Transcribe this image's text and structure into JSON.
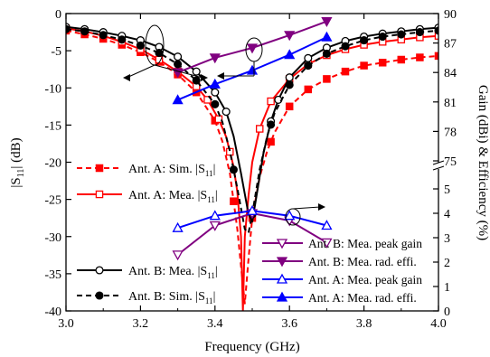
{
  "chart_data": {
    "type": "line",
    "xlabel": "Frequency (GHz)",
    "ylabel_left": "|S11| (dB)",
    "ylabel_right": "Gain (dBi) & Efficiency (%)",
    "xlim": [
      3.0,
      4.0
    ],
    "ylim_left": [
      -40,
      0
    ],
    "x_ticks": [
      "3.0",
      "3.2",
      "3.4",
      "3.6",
      "3.8",
      "4.0"
    ],
    "y_ticks_left": [
      "0",
      "-5",
      "-10",
      "-15",
      "-20",
      "-25",
      "-30",
      "-35",
      "-40"
    ],
    "right_axis": {
      "lower_segment": {
        "range": [
          0,
          5
        ],
        "ticks": [
          "0",
          "1",
          "2",
          "3",
          "4",
          "5"
        ]
      },
      "upper_segment": {
        "range": [
          75,
          90
        ],
        "ticks": [
          "75",
          "78",
          "81",
          "84",
          "87",
          "90"
        ]
      }
    },
    "grid": false,
    "legend_left": [
      {
        "series": "Ant. A: Sim. |S11|",
        "label": "Ant. A: Sim. |S",
        "sub": "11",
        "tail": "|"
      },
      {
        "series": "Ant. A: Mea. |S11|",
        "label": "Ant. A: Mea. |S",
        "sub": "11",
        "tail": "|"
      },
      {
        "series": "Ant. B: Mea. |S11|",
        "label": "Ant. B: Mea. |S",
        "sub": "11",
        "tail": "|"
      },
      {
        "series": "Ant. B: Sim. |S11|",
        "label": "Ant. B: Sim. |S",
        "sub": "11",
        "tail": "|"
      }
    ],
    "legend_right": [
      "Ant. B: Mea. peak gain",
      "Ant. B: Mea. rad. effi.",
      "Ant. A: Mea. peak gain",
      "Ant. A: Mea. rad. effi."
    ],
    "series": [
      {
        "name": "Ant. A: Sim. |S11|",
        "axis": "left",
        "color": "#ff0000",
        "dash": true,
        "marker": "square-filled",
        "x": [
          3.0,
          3.05,
          3.1,
          3.15,
          3.2,
          3.25,
          3.3,
          3.35,
          3.4,
          3.42,
          3.44,
          3.46,
          3.47,
          3.48,
          3.49,
          3.5,
          3.52,
          3.54,
          3.56,
          3.6,
          3.65,
          3.7,
          3.75,
          3.8,
          3.85,
          3.9,
          3.95,
          4.0
        ],
        "y": [
          -2.3,
          -2.8,
          -3.4,
          -4.2,
          -5.2,
          -6.5,
          -8.2,
          -10.6,
          -14.4,
          -17.2,
          -21.5,
          -29.0,
          -34.0,
          -39.0,
          -33.0,
          -27.5,
          -22.0,
          -18.5,
          -16.0,
          -12.5,
          -10.2,
          -8.8,
          -7.8,
          -7.0,
          -6.6,
          -6.2,
          -5.9,
          -5.7
        ],
        "marker_x": [
          3.0,
          3.05,
          3.1,
          3.15,
          3.2,
          3.25,
          3.3,
          3.35,
          3.4,
          3.45,
          3.5,
          3.55,
          3.6,
          3.65,
          3.7,
          3.75,
          3.8,
          3.85,
          3.9,
          3.95,
          4.0
        ]
      },
      {
        "name": "Ant. A: Mea. |S11|",
        "axis": "left",
        "color": "#ff0000",
        "dash": false,
        "marker": "square-open",
        "x": [
          3.0,
          3.05,
          3.1,
          3.15,
          3.2,
          3.25,
          3.3,
          3.35,
          3.38,
          3.41,
          3.43,
          3.45,
          3.46,
          3.47,
          3.475,
          3.48,
          3.49,
          3.5,
          3.52,
          3.55,
          3.6,
          3.65,
          3.7,
          3.75,
          3.8,
          3.85,
          3.9,
          3.95,
          4.0
        ],
        "y": [
          -2.0,
          -2.4,
          -3.0,
          -3.8,
          -4.8,
          -6.2,
          -7.8,
          -9.8,
          -11.6,
          -14.2,
          -16.6,
          -20.6,
          -24.0,
          -30.0,
          -40.0,
          -30.0,
          -24.5,
          -20.0,
          -15.5,
          -11.8,
          -8.8,
          -6.8,
          -5.6,
          -4.8,
          -4.2,
          -3.8,
          -3.5,
          -3.2,
          -3.0
        ],
        "marker_x": [
          3.0,
          3.05,
          3.1,
          3.15,
          3.2,
          3.25,
          3.3,
          3.35,
          3.38,
          3.41,
          3.44,
          3.52,
          3.55,
          3.6,
          3.65,
          3.7,
          3.75,
          3.8,
          3.85,
          3.9,
          3.95,
          4.0
        ]
      },
      {
        "name": "Ant. B: Mea. |S11|",
        "axis": "left",
        "color": "#000000",
        "dash": false,
        "marker": "circle-open",
        "x": [
          3.0,
          3.05,
          3.1,
          3.15,
          3.2,
          3.25,
          3.3,
          3.35,
          3.4,
          3.43,
          3.45,
          3.47,
          3.49,
          3.5,
          3.51,
          3.53,
          3.55,
          3.57,
          3.6,
          3.65,
          3.7,
          3.75,
          3.8,
          3.85,
          3.9,
          3.95,
          4.0
        ],
        "y": [
          -1.8,
          -2.1,
          -2.5,
          -3.0,
          -3.6,
          -4.5,
          -5.8,
          -7.8,
          -10.6,
          -13.2,
          -16.5,
          -21.5,
          -27.0,
          -28.0,
          -25.0,
          -18.8,
          -14.5,
          -11.6,
          -8.6,
          -6.0,
          -4.6,
          -3.7,
          -3.1,
          -2.7,
          -2.4,
          -2.1,
          -1.9
        ],
        "marker_x": [
          3.0,
          3.05,
          3.1,
          3.15,
          3.2,
          3.25,
          3.3,
          3.35,
          3.4,
          3.43,
          3.55,
          3.57,
          3.6,
          3.65,
          3.7,
          3.75,
          3.8,
          3.85,
          3.9,
          3.95,
          4.0
        ]
      },
      {
        "name": "Ant. B: Sim. |S11|",
        "axis": "left",
        "color": "#000000",
        "dash": true,
        "marker": "circle-filled",
        "x": [
          3.0,
          3.05,
          3.1,
          3.15,
          3.2,
          3.25,
          3.3,
          3.35,
          3.4,
          3.42,
          3.44,
          3.46,
          3.48,
          3.49,
          3.5,
          3.52,
          3.54,
          3.56,
          3.6,
          3.65,
          3.7,
          3.75,
          3.8,
          3.85,
          3.9,
          3.95,
          4.0
        ],
        "y": [
          -2.1,
          -2.4,
          -2.9,
          -3.5,
          -4.3,
          -5.3,
          -6.8,
          -9.0,
          -12.2,
          -14.6,
          -18.5,
          -23.5,
          -29.0,
          -29.5,
          -27.0,
          -21.0,
          -16.5,
          -13.4,
          -9.6,
          -7.0,
          -5.4,
          -4.4,
          -3.6,
          -3.1,
          -2.8,
          -2.5,
          -2.3
        ],
        "marker_x": [
          3.0,
          3.05,
          3.1,
          3.15,
          3.2,
          3.25,
          3.3,
          3.35,
          3.4,
          3.45,
          3.5,
          3.55,
          3.6,
          3.65,
          3.7,
          3.75,
          3.8,
          3.85,
          3.9,
          3.95,
          4.0
        ]
      },
      {
        "name": "Ant. B: Mea. peak gain",
        "axis": "right-lower",
        "color": "#800080",
        "dash": false,
        "marker": "triangle-down-open",
        "x": [
          3.3,
          3.4,
          3.5,
          3.6,
          3.7
        ],
        "y": [
          2.3,
          3.5,
          4.0,
          3.7,
          2.8
        ]
      },
      {
        "name": "Ant. B: Mea. rad. effi.",
        "axis": "right-upper",
        "color": "#800080",
        "dash": false,
        "marker": "triangle-down-filled",
        "x": [
          3.3,
          3.4,
          3.5,
          3.6,
          3.7
        ],
        "y": [
          84.0,
          85.5,
          86.5,
          87.8,
          89.2
        ]
      },
      {
        "name": "Ant. A: Mea. peak gain",
        "axis": "right-lower",
        "color": "#0000ff",
        "dash": false,
        "marker": "triangle-up-open",
        "x": [
          3.3,
          3.4,
          3.5,
          3.6,
          3.7
        ],
        "y": [
          3.4,
          3.9,
          4.1,
          3.9,
          3.5
        ]
      },
      {
        "name": "Ant. A: Mea. rad. effi.",
        "axis": "right-upper",
        "color": "#0000ff",
        "dash": false,
        "marker": "triangle-up-filled",
        "x": [
          3.3,
          3.4,
          3.5,
          3.6,
          3.7
        ],
        "y": [
          81.2,
          82.8,
          84.2,
          85.8,
          87.6
        ]
      }
    ]
  }
}
